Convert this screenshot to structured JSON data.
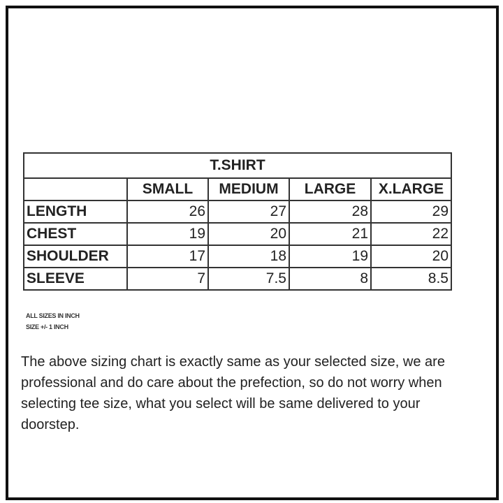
{
  "table": {
    "title": "T.SHIRT",
    "columns": [
      "SMALL",
      "MEDIUM",
      "LARGE",
      "X.LARGE"
    ],
    "rows": [
      {
        "label": "LENGTH",
        "values": [
          "26",
          "27",
          "28",
          "29"
        ]
      },
      {
        "label": "CHEST",
        "values": [
          "19",
          "20",
          "21",
          "22"
        ]
      },
      {
        "label": "SHOULDER",
        "values": [
          "17",
          "18",
          "19",
          "20"
        ]
      },
      {
        "label": "SLEEVE",
        "values": [
          "7",
          "7.5",
          "8",
          "8.5"
        ]
      }
    ]
  },
  "notes": [
    "ALL SIZES IN INCH",
    "SIZE +/- 1 INCH"
  ],
  "paragraph": "The above sizing chart is exactly same as your selected size, we are professional and do care about the prefection, so do not worry when selecting tee size, what you select will be same delivered to your doorstep."
}
